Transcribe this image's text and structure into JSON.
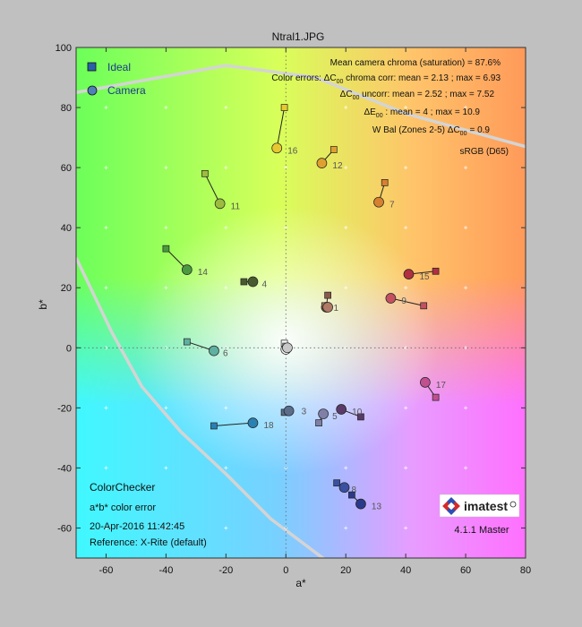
{
  "chart_data": {
    "type": "scatter",
    "title": "Ntral1.JPG",
    "xlabel": "a*",
    "ylabel": "b*",
    "xlim": [
      -70,
      80
    ],
    "ylim": [
      -70,
      100
    ],
    "xticks": [
      -60,
      -40,
      -20,
      0,
      20,
      40,
      60,
      80
    ],
    "yticks": [
      -60,
      -40,
      -20,
      0,
      20,
      40,
      60,
      80,
      100
    ],
    "xtick_labels": [
      "-60",
      "-40",
      "-20",
      "0",
      "20",
      "40",
      "60",
      "80"
    ],
    "ytick_labels": [
      "-60",
      "-40",
      "-20",
      "0",
      "20",
      "40",
      "60",
      "80",
      "100"
    ],
    "legend": {
      "placement": "top-left",
      "entries": [
        {
          "name": "Ideal",
          "marker": "square"
        },
        {
          "name": "Camera",
          "marker": "circle"
        }
      ]
    },
    "stats": {
      "mean_chroma": "Mean camera chroma (saturation) = 87.6%",
      "chroma_corr_prefix": "Color errors:  ΔC",
      "chroma_corr": " chroma corr: mean = 2.13 ; max = 6.93",
      "uncorr_prefix": "ΔC",
      "uncorr": " uncorr: mean = 2.52 ; max = 7.52",
      "de_prefix": "ΔE",
      "de": " : mean = 4 ; max = 10.9",
      "wbal_prefix": "W Bal (Zones 2-5)   ΔC",
      "wbal": "= 0.9",
      "subscript": "00",
      "gamut_label": "sRGB (D65)"
    },
    "info": {
      "line1": "ColorChecker",
      "line2": "a*b* color error",
      "line3": "20-Apr-2016 11:42:45",
      "line4": "Reference: X-Rite (default)",
      "version": "4.1.1 Master",
      "logo": "imatest"
    },
    "patches": [
      {
        "id": "1",
        "ideal": [
          14,
          17.5
        ],
        "camera": [
          13.5,
          13.5
        ],
        "color": "#8a5a4a"
      },
      {
        "id": "2",
        "ideal": [
          13,
          14
        ],
        "camera": [
          14,
          13.5
        ],
        "color": "#b07a66"
      },
      {
        "id": "3",
        "ideal": [
          -0.5,
          -21.5
        ],
        "camera": [
          1,
          -21
        ],
        "color": "#5a6e8c"
      },
      {
        "id": "4",
        "ideal": [
          -14,
          22
        ],
        "camera": [
          -11,
          22
        ],
        "color": "#4a5a30"
      },
      {
        "id": "5",
        "ideal": [
          11,
          -25
        ],
        "camera": [
          12.5,
          -22
        ],
        "color": "#7f7fa8"
      },
      {
        "id": "6",
        "ideal": [
          -33,
          2
        ],
        "camera": [
          -24,
          -1
        ],
        "color": "#5fb0a0"
      },
      {
        "id": "7",
        "ideal": [
          33,
          55
        ],
        "camera": [
          31,
          48.5
        ],
        "color": "#d68030"
      },
      {
        "id": "8",
        "ideal": [
          17,
          -45
        ],
        "camera": [
          19.5,
          -46.5
        ],
        "color": "#3a50a0"
      },
      {
        "id": "9",
        "ideal": [
          46,
          14
        ],
        "camera": [
          35,
          16.5
        ],
        "color": "#c45060"
      },
      {
        "id": "10",
        "ideal": [
          25,
          -23
        ],
        "camera": [
          18.5,
          -20.5
        ],
        "color": "#5a3a6a"
      },
      {
        "id": "11",
        "ideal": [
          -27,
          58
        ],
        "camera": [
          -22,
          48
        ],
        "color": "#9cbc40"
      },
      {
        "id": "12",
        "ideal": [
          16,
          66
        ],
        "camera": [
          12,
          61.5
        ],
        "color": "#e0a030"
      },
      {
        "id": "13",
        "ideal": [
          22,
          -49
        ],
        "camera": [
          25,
          -52
        ],
        "color": "#2a3a8a"
      },
      {
        "id": "14",
        "ideal": [
          -40,
          33
        ],
        "camera": [
          -33,
          26
        ],
        "color": "#4a9a40"
      },
      {
        "id": "15",
        "ideal": [
          50,
          25.5
        ],
        "camera": [
          41,
          24.5
        ],
        "color": "#b03040"
      },
      {
        "id": "16",
        "ideal": [
          -0.5,
          80
        ],
        "camera": [
          -3,
          66.5
        ],
        "color": "#e8c830"
      },
      {
        "id": "17",
        "ideal": [
          50,
          -16.5
        ],
        "camera": [
          46.5,
          -11.5
        ],
        "color": "#c05090"
      },
      {
        "id": "18",
        "ideal": [
          -24,
          -26
        ],
        "camera": [
          -11,
          -25
        ],
        "color": "#2a80b0"
      },
      {
        "id": "19",
        "ideal": [
          -0.5,
          1.5
        ],
        "camera": [
          0,
          -0.5
        ],
        "color": "#f2f2f2"
      },
      {
        "id": "20",
        "ideal": [
          0,
          0.5
        ],
        "camera": [
          0.5,
          0
        ],
        "color": "#c8c8c8"
      }
    ],
    "gamut_boundary": [
      [
        -70,
        85
      ],
      [
        -20,
        94
      ],
      [
        10,
        90
      ],
      [
        40,
        78
      ],
      [
        80,
        67
      ]
    ],
    "gamut_boundary_2": [
      [
        -70,
        30
      ],
      [
        -58,
        5
      ],
      [
        -48,
        -13
      ],
      [
        -35,
        -28
      ],
      [
        -20,
        -42
      ],
      [
        -5,
        -57
      ],
      [
        15,
        -72
      ]
    ]
  }
}
